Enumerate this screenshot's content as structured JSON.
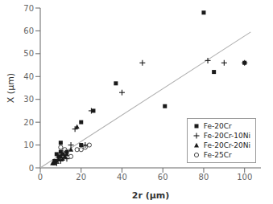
{
  "chart_data": {
    "type": "scatter",
    "x_label": "2r (μm)",
    "y_label": "X (μm)",
    "xlim": [
      0,
      108
    ],
    "ylim": [
      0,
      70
    ],
    "xticks": [
      0,
      20,
      40,
      60,
      80,
      100
    ],
    "yticks": [
      0,
      10,
      20,
      30,
      40,
      50,
      60,
      70
    ],
    "grid": false,
    "legend": "lower right",
    "series": [
      {
        "type": "line",
        "color": "#b0b0b0",
        "x": [
          0,
          103
        ],
        "values": [
          0,
          59.5
        ]
      },
      {
        "name": "Fe-20Cr",
        "type": "scatter",
        "marker": "square",
        "color": "#1a1a1a",
        "x": [
          7,
          8,
          9,
          10,
          10,
          11,
          13,
          20,
          20,
          26,
          37,
          61,
          80,
          85,
          100
        ],
        "values": [
          3,
          6,
          5,
          7,
          11,
          6,
          7,
          10,
          20,
          25,
          37,
          27,
          68,
          42,
          46
        ]
      },
      {
        "name": "Fe-20Cr-10Ni",
        "type": "scatter",
        "marker": "plus",
        "color": "#1a1a1a",
        "x": [
          8,
          10,
          13,
          15,
          17,
          22,
          25,
          40,
          50,
          82,
          90,
          100
        ],
        "values": [
          2,
          3,
          4,
          10,
          17,
          10,
          25,
          33,
          46,
          47,
          46,
          46
        ]
      },
      {
        "name": "Fe-20Cr-20Ni",
        "type": "scatter",
        "marker": "triangle",
        "color": "#1a1a1a",
        "x": [
          6,
          7,
          8,
          9,
          10,
          11,
          12,
          13,
          15,
          18
        ],
        "values": [
          2,
          2,
          3,
          4,
          5,
          4,
          5,
          6,
          8,
          18
        ]
      },
      {
        "name": "Fe-25Cr",
        "type": "scatter",
        "marker": "circle",
        "color": "#1a1a1a",
        "x": [
          10,
          12,
          15,
          18,
          20,
          22,
          24
        ],
        "values": [
          9,
          8,
          5,
          8,
          8,
          9,
          10
        ]
      }
    ]
  }
}
